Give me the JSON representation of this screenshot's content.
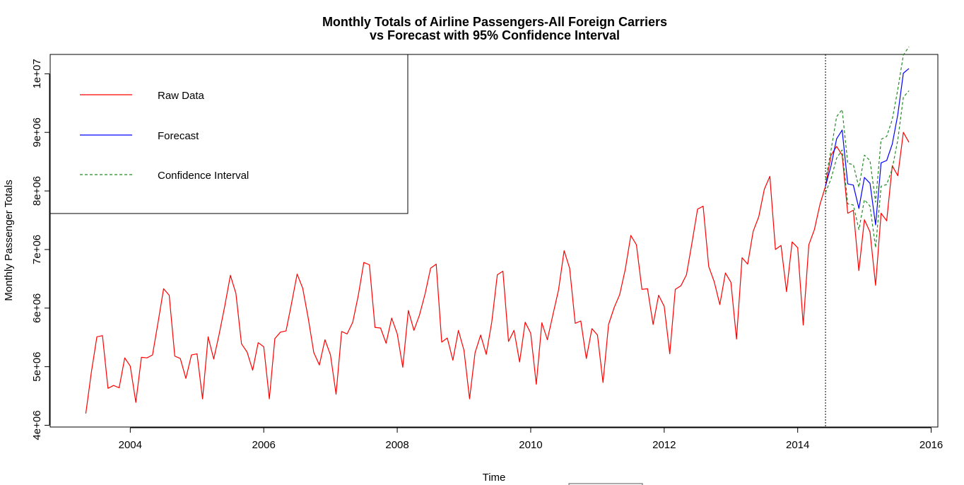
{
  "chart_data": {
    "type": "line",
    "title": "Monthly Totals of Airline Passengers-All Foreign Carriers",
    "subtitle": "vs Forecast with 95% Confidence Interval",
    "xlabel": "Time",
    "ylabel": "Monthly Passenger Totals",
    "xlim": [
      2002.8,
      2016.1
    ],
    "ylim": [
      3970000,
      10330000
    ],
    "xticks": [
      2004,
      2006,
      2008,
      2010,
      2012,
      2014,
      2016
    ],
    "xtick_labels": [
      "2004",
      "2006",
      "2008",
      "2010",
      "2012",
      "2014",
      "2016"
    ],
    "yticks": [
      4000000,
      5000000,
      6000000,
      7000000,
      8000000,
      9000000,
      10000000
    ],
    "ytick_labels": [
      "4e+06",
      "5e+06",
      "6e+06",
      "7e+06",
      "8e+06",
      "9e+06",
      "1e+07"
    ],
    "grid": false,
    "legend_position": "top-left",
    "forecast_start": 2014.4167,
    "series": [
      {
        "name": "Raw Data",
        "color": "#ff0000",
        "dash": "solid",
        "start": 2003.3333,
        "step": 0.083333,
        "values": [
          4200000,
          4900000,
          5510000,
          5530000,
          4630000,
          4680000,
          4640000,
          5150000,
          5010000,
          4390000,
          5160000,
          5150000,
          5200000,
          5760000,
          6330000,
          6220000,
          5180000,
          5140000,
          4800000,
          5200000,
          5220000,
          4450000,
          5510000,
          5130000,
          5560000,
          6040000,
          6560000,
          6250000,
          5390000,
          5250000,
          4940000,
          5410000,
          5340000,
          4450000,
          5480000,
          5590000,
          5610000,
          6080000,
          6580000,
          6340000,
          5830000,
          5240000,
          5030000,
          5460000,
          5200000,
          4530000,
          5600000,
          5560000,
          5760000,
          6220000,
          6780000,
          6740000,
          5670000,
          5660000,
          5400000,
          5830000,
          5560000,
          4990000,
          5960000,
          5620000,
          5880000,
          6240000,
          6680000,
          6750000,
          5420000,
          5490000,
          5110000,
          5620000,
          5280000,
          4450000,
          5240000,
          5540000,
          5210000,
          5760000,
          6570000,
          6630000,
          5430000,
          5620000,
          5080000,
          5760000,
          5570000,
          4700000,
          5750000,
          5460000,
          5890000,
          6310000,
          6980000,
          6680000,
          5740000,
          5780000,
          5140000,
          5650000,
          5540000,
          4730000,
          5720000,
          6010000,
          6230000,
          6660000,
          7240000,
          7080000,
          6320000,
          6330000,
          5720000,
          6220000,
          6030000,
          5220000,
          6320000,
          6380000,
          6570000,
          7120000,
          7690000,
          7740000,
          6710000,
          6450000,
          6060000,
          6600000,
          6440000,
          5470000,
          6860000,
          6750000,
          7310000,
          7560000,
          8030000,
          8250000,
          7000000,
          7070000,
          6280000,
          7130000,
          7030000,
          5710000,
          7080000,
          7340000,
          7770000,
          8080000,
          8610000,
          8760000,
          8610000,
          7620000,
          7670000,
          6640000,
          7510000,
          7300000,
          6390000,
          7620000,
          7490000,
          8430000,
          8260000,
          9000000,
          8830000
        ]
      },
      {
        "name": "Forecast",
        "color": "#0000ff",
        "dash": "solid",
        "start": 2014.4167,
        "step": 0.083333,
        "values": [
          8080000,
          8430000,
          8890000,
          9040000,
          8120000,
          8100000,
          7700000,
          8230000,
          8130000,
          7420000,
          8480000,
          8520000,
          8800000,
          9300000,
          10010000,
          10090000
        ]
      },
      {
        "name": "Confidence Interval",
        "color": "#228b22",
        "dash": "dashed",
        "start": 2014.4167,
        "step": 0.083333,
        "values": [
          8190000,
          8700000,
          9270000,
          9390000,
          8470000,
          8450000,
          8060000,
          8610000,
          8520000,
          7810000,
          8880000,
          8930000,
          9220000,
          9730000,
          10320000,
          10460000
        ]
      },
      {
        "name": "Confidence Interval",
        "color": "#228b22",
        "dash": "dashed",
        "start": 2014.4167,
        "step": 0.083333,
        "values": [
          7970000,
          8210000,
          8560000,
          8700000,
          7780000,
          7760000,
          7340000,
          7850000,
          7740000,
          7030000,
          8080000,
          8110000,
          8380000,
          8870000,
          9600000,
          9710000
        ]
      }
    ]
  }
}
